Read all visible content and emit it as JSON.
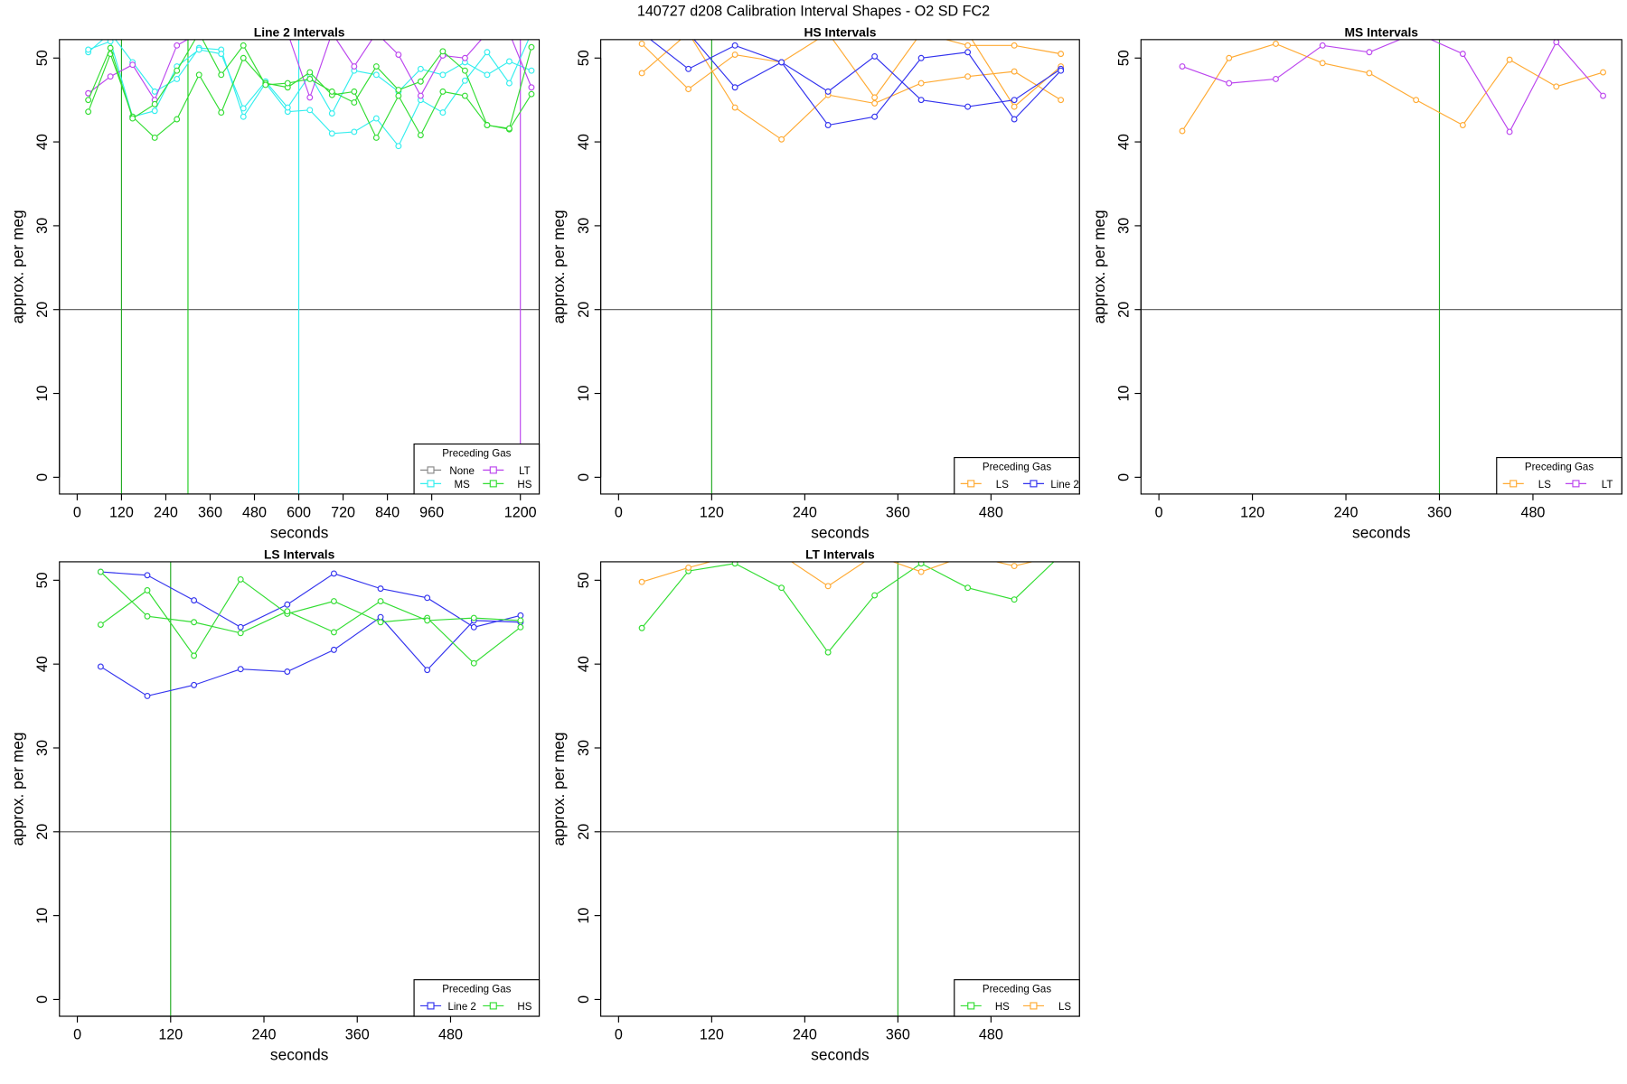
{
  "title": "140727   d208   Calibration Interval Shapes - O2 SD FC2",
  "chart_data": [
    {
      "type": "line",
      "title": "Line 2 Intervals",
      "xlabel": "seconds",
      "ylabel": "approx. per meg",
      "x": [
        30,
        90,
        150,
        210,
        270,
        330,
        390,
        450,
        510,
        570,
        630,
        690,
        750,
        810,
        870,
        930,
        990,
        1050,
        1110,
        1170,
        1230
      ],
      "xlim": [
        -48,
        1251
      ],
      "ylim": [
        -2,
        52.2
      ],
      "xticks": [
        0,
        120,
        240,
        360,
        480,
        600,
        720,
        840,
        960,
        1200
      ],
      "yticks": [
        0,
        10,
        20,
        30,
        40,
        50
      ],
      "hline": {
        "y": 20,
        "color": "#555555"
      },
      "vlines": [
        {
          "x": 120,
          "color": "#22aa22"
        },
        {
          "x": 300,
          "color": "#22cc22"
        },
        {
          "x": 600,
          "color": "#33eeee"
        },
        {
          "x": 1200,
          "color": "#bb44ee"
        }
      ],
      "legend": {
        "title": "Preceding Gas",
        "position": "bottom-right",
        "columns": 2
      },
      "series": [
        {
          "name": "None",
          "color": "#888888",
          "traces": []
        },
        {
          "name": "MS",
          "color": "#33eeee",
          "traces": [
            [
              50.7,
              53,
              49.5,
              46,
              47.5,
              51.2,
              51,
              43,
              47,
              43.6,
              43.8,
              41,
              41.2,
              42.8,
              39.5,
              45,
              43.5,
              47.3,
              50.7,
              47,
              53
            ],
            [
              51,
              52,
              43,
              43.7,
              49,
              51,
              50.5,
              44,
              47.2,
              44.1,
              48,
              43.4,
              48.5,
              48,
              46,
              48.7,
              48,
              49.5,
              48,
              49.6,
              48.5
            ]
          ]
        },
        {
          "name": "LT",
          "color": "#bb44ee",
          "traces": [
            [
              45.8,
              47.8,
              49.2,
              45,
              51.5,
              53,
              53,
              53,
              53,
              53,
              45.3,
              53,
              49,
              53,
              50.4,
              45.5,
              50.3,
              50,
              53,
              53,
              46.5
            ]
          ]
        },
        {
          "name": "HS",
          "color": "#33dd33",
          "traces": [
            [
              43.6,
              50.5,
              43,
              40.5,
              42.7,
              48,
              43.5,
              50,
              47,
              46.5,
              48.3,
              45.6,
              46,
              40.5,
              45.5,
              40.8,
              46,
              45.5,
              42,
              41.5,
              45.7
            ],
            [
              45,
              51.2,
              42.8,
              44.5,
              48.5,
              53,
              48,
              51.5,
              46.8,
              47,
              47.5,
              46,
              44.7,
              49,
              46.2,
              47.2,
              50.8,
              48.5,
              42,
              41.6,
              51.3
            ]
          ]
        }
      ]
    },
    {
      "type": "line",
      "title": "HS Intervals",
      "xlabel": "seconds",
      "ylabel": "approx. per meg",
      "x": [
        30,
        90,
        150,
        210,
        270,
        330,
        390,
        450,
        510,
        570
      ],
      "xlim": [
        -23,
        594
      ],
      "ylim": [
        -2,
        52.2
      ],
      "xticks": [
        0,
        120,
        240,
        360,
        480
      ],
      "yticks": [
        0,
        10,
        20,
        30,
        40,
        50
      ],
      "hline": {
        "y": 20,
        "color": "#555555"
      },
      "vlines": [
        {
          "x": 120,
          "color": "#22aa22"
        }
      ],
      "legend": {
        "title": "Preceding Gas",
        "position": "bottom-right",
        "columns": 2
      },
      "series": [
        {
          "name": "LS",
          "color": "#ffaa33",
          "traces": [
            [
              51.7,
              46.3,
              50.4,
              49.5,
              53,
              45.3,
              53,
              51.5,
              51.5,
              50.5
            ],
            [
              48.2,
              53,
              44.1,
              40.3,
              45.6,
              44.6,
              47,
              47.8,
              48.4,
              45
            ],
            [
              53,
              53,
              53,
              53,
              53,
              53,
              53,
              53,
              44.2,
              49
            ]
          ]
        },
        {
          "name": "Line 2",
          "color": "#3333ee",
          "traces": [
            [
              53,
              48.7,
              51.5,
              49.5,
              46,
              50.2,
              45,
              44.2,
              45,
              48.7
            ],
            [
              53,
              53,
              46.5,
              49.5,
              42,
              43,
              50,
              50.7,
              42.7,
              48.5
            ]
          ]
        }
      ]
    },
    {
      "type": "line",
      "title": "MS Intervals",
      "xlabel": "seconds",
      "ylabel": "approx. per meg",
      "x": [
        30,
        90,
        150,
        210,
        270,
        330,
        390,
        450,
        510,
        570
      ],
      "xlim": [
        -23,
        594
      ],
      "ylim": [
        -2,
        52.2
      ],
      "xticks": [
        0,
        120,
        240,
        360,
        480
      ],
      "yticks": [
        0,
        10,
        20,
        30,
        40,
        50
      ],
      "hline": {
        "y": 20,
        "color": "#555555"
      },
      "vlines": [
        {
          "x": 360,
          "color": "#22aa22"
        }
      ],
      "legend": {
        "title": "Preceding Gas",
        "position": "bottom-right",
        "columns": 2
      },
      "series": [
        {
          "name": "LS",
          "color": "#ffaa33",
          "traces": [
            [
              41.3,
              50,
              51.7,
              49.4,
              48.2,
              45,
              42,
              49.8,
              46.6,
              48.3
            ]
          ]
        },
        {
          "name": "LT",
          "color": "#bb44ee",
          "traces": [
            [
              49,
              47,
              47.5,
              51.5,
              50.7,
              53,
              50.5,
              41.2,
              51.9,
              45.5
            ]
          ]
        }
      ]
    },
    {
      "type": "line",
      "title": "LS Intervals",
      "xlabel": "seconds",
      "ylabel": "approx. per meg",
      "x": [
        30,
        90,
        150,
        210,
        270,
        330,
        390,
        450,
        510,
        570
      ],
      "xlim": [
        -23,
        594
      ],
      "ylim": [
        -2,
        52.2
      ],
      "xticks": [
        0,
        120,
        240,
        360,
        480
      ],
      "yticks": [
        0,
        10,
        20,
        30,
        40,
        50
      ],
      "hline": {
        "y": 20,
        "color": "#555555"
      },
      "vlines": [
        {
          "x": 120,
          "color": "#22aa22"
        }
      ],
      "legend": {
        "title": "Preceding Gas",
        "position": "bottom-right",
        "columns": 2
      },
      "series": [
        {
          "name": "Line 2",
          "color": "#3333ee",
          "traces": [
            [
              51,
              50.6,
              47.6,
              44.4,
              47.1,
              50.8,
              49,
              47.9,
              44.4,
              45.8
            ],
            [
              39.7,
              36.2,
              37.5,
              39.4,
              39.1,
              41.7,
              45.6,
              39.3,
              45.2,
              45
            ]
          ]
        },
        {
          "name": "HS",
          "color": "#33dd33",
          "traces": [
            [
              44.7,
              48.8,
              41,
              50.1,
              46,
              47.5,
              45,
              45.5,
              40.1,
              44.4
            ],
            [
              51,
              45.7,
              45,
              43.7,
              46.3,
              43.8,
              47.5,
              45.2,
              45.5,
              45.2
            ]
          ]
        }
      ]
    },
    {
      "type": "line",
      "title": "LT Intervals",
      "xlabel": "seconds",
      "ylabel": "approx. per meg",
      "x": [
        30,
        90,
        150,
        210,
        270,
        330,
        390,
        450,
        510,
        570
      ],
      "xlim": [
        -23,
        594
      ],
      "ylim": [
        -2,
        52.2
      ],
      "xticks": [
        0,
        120,
        240,
        360,
        480
      ],
      "yticks": [
        0,
        10,
        20,
        30,
        40,
        50
      ],
      "hline": {
        "y": 20,
        "color": "#555555"
      },
      "vlines": [
        {
          "x": 360,
          "color": "#22aa22"
        }
      ],
      "legend": {
        "title": "Preceding Gas",
        "position": "bottom-right",
        "columns": 2
      },
      "series": [
        {
          "name": "HS",
          "color": "#33dd33",
          "traces": [
            [
              44.3,
              51.1,
              52,
              49.1,
              41.4,
              48.2,
              52,
              49.1,
              47.7,
              53
            ]
          ]
        },
        {
          "name": "LS",
          "color": "#ffaa33",
          "traces": [
            [
              49.8,
              51.5,
              53,
              53,
              49.3,
              53,
              51,
              53,
              51.7,
              53
            ]
          ]
        }
      ]
    }
  ]
}
